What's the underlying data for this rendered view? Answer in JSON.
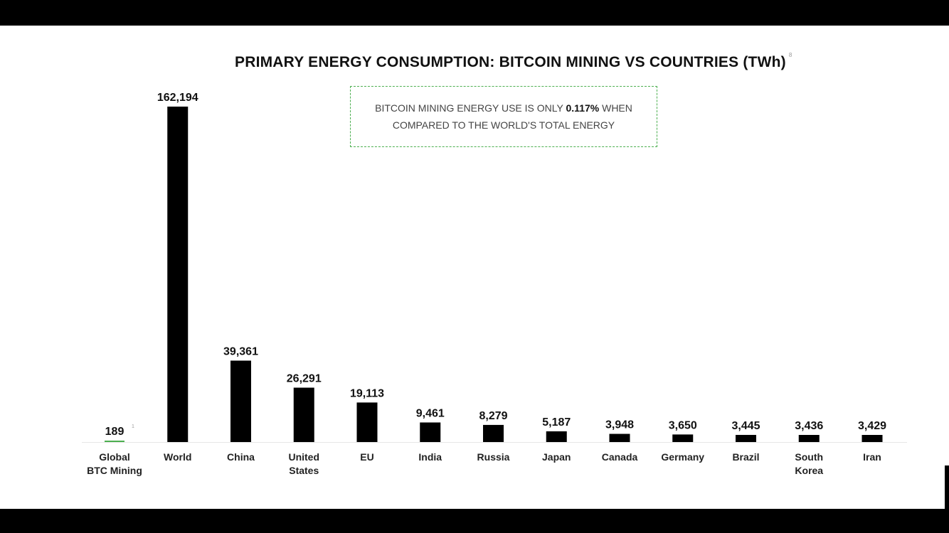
{
  "chart_data": {
    "type": "bar",
    "title": "PRIMARY ENERGY CONSUMPTION: BITCOIN MINING VS COUNTRIES (TWh)",
    "title_note": "8",
    "callout": {
      "line1_pre": "BITCOIN MINING ENERGY USE IS ONLY ",
      "line1_bold": "0.117%",
      "line1_post": " WHEN",
      "line2": "COMPARED TO THE WORLD'S TOTAL ENERGY"
    },
    "unit": "TWh",
    "grid": false,
    "highlight_color": "#4caf50",
    "bar_color": "#000000",
    "categories": [
      [
        "Global",
        "BTC Mining"
      ],
      [
        "World"
      ],
      [
        "China"
      ],
      [
        "United",
        "States"
      ],
      [
        "EU"
      ],
      [
        "India"
      ],
      [
        "Russia"
      ],
      [
        "Japan"
      ],
      [
        "Canada"
      ],
      [
        "Germany"
      ],
      [
        "Brazil"
      ],
      [
        "South",
        "Korea"
      ],
      [
        "Iran"
      ]
    ],
    "values": [
      189,
      162194,
      39361,
      26291,
      19113,
      9461,
      8279,
      5187,
      3948,
      3650,
      3445,
      3436,
      3429
    ],
    "value_labels": [
      "189",
      "162,194",
      "39,361",
      "26,291",
      "19,113",
      "9,461",
      "8,279",
      "5,187",
      "3,948",
      "3,650",
      "3,445",
      "3,436",
      "3,429"
    ],
    "value_notes": [
      "1",
      "",
      "",
      "",
      "",
      "",
      "",
      "",
      "",
      "",
      "",
      "",
      ""
    ],
    "highlight_index": 0
  }
}
